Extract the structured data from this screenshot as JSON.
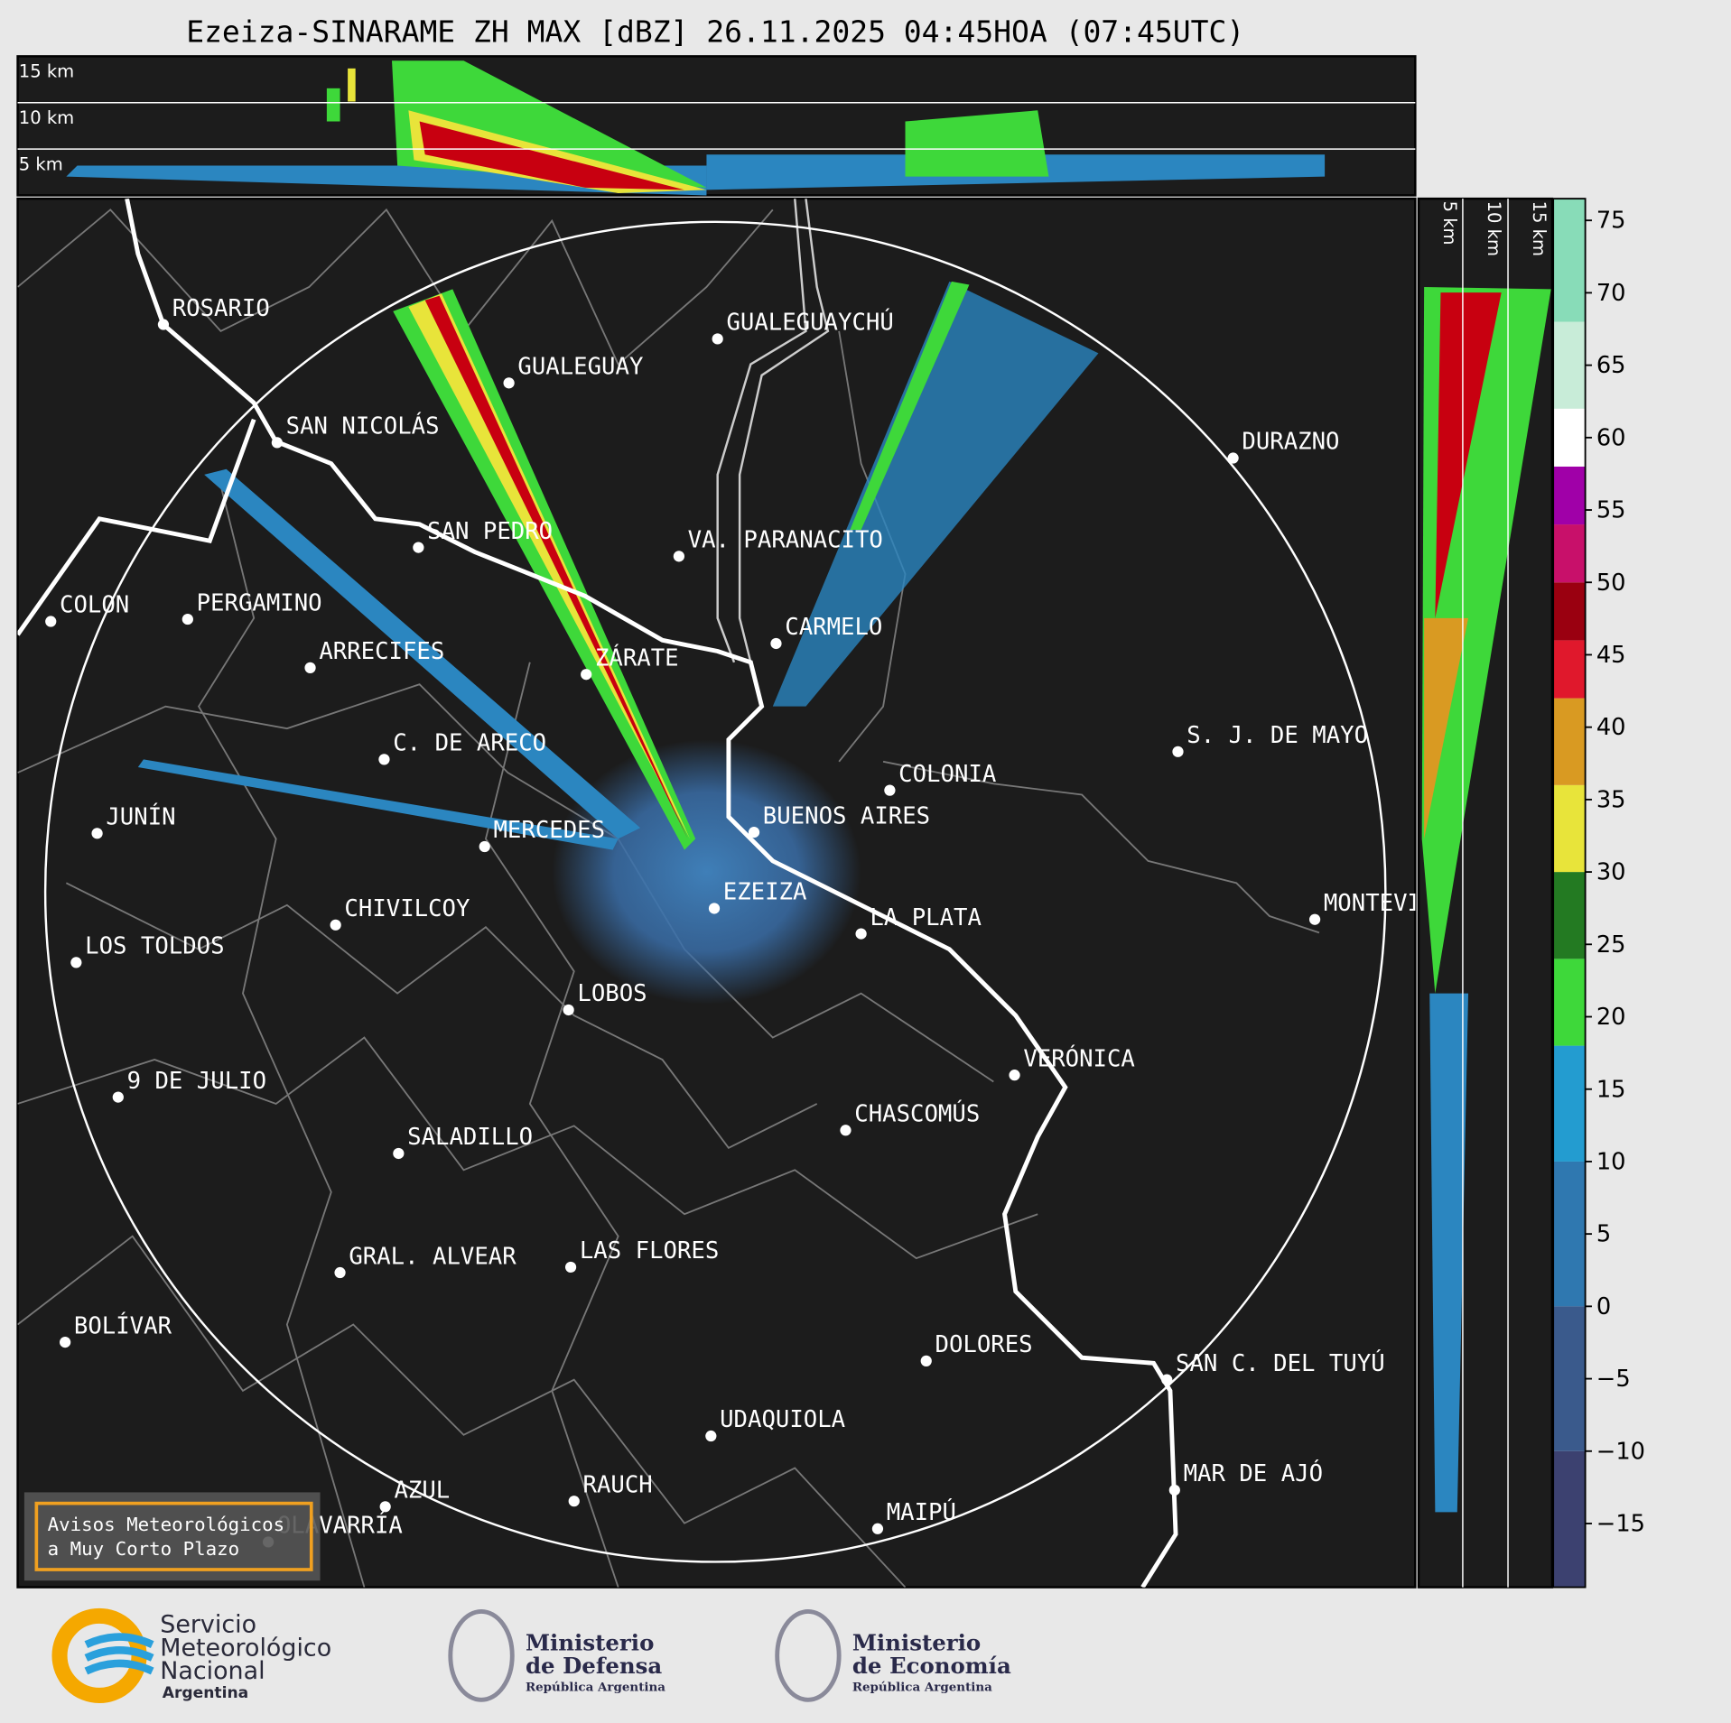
{
  "title": "Ezeiza-SINARAME ZH MAX [dBZ] 26.11.2025 04:45HOA (07:45UTC)",
  "top_panel": {
    "labels": [
      "15 km",
      "10 km",
      "5 km"
    ]
  },
  "side_panel": {
    "labels": [
      "5 km",
      "10 km",
      "15 km"
    ]
  },
  "cities": [
    "ROSARIO",
    "GUALEGUAYCHÚ",
    "GUALEGUAY",
    "SAN NICOLÁS",
    "DURAZNO",
    "SAN PEDRO",
    "VA. PARANACITO",
    "COLON",
    "PERGAMINO",
    "CARMELO",
    "ARRECIFES",
    "ZÁRATE",
    "S. J. DE MAYO",
    "C. DE ARECO",
    "COLONIA",
    "BUENOS AIRES",
    "JUNÍN",
    "MERCEDES",
    "MONTEVIDEO",
    "EZEIZA",
    "CHIVILCOY",
    "LA PLATA",
    "LOS TOLDOS",
    "LOBOS",
    "VERÓNICA",
    "9 DE JULIO",
    "CHASCOMÚS",
    "SALADILLO",
    "GRAL. ALVEAR",
    "LAS FLORES",
    "BOLÍVAR",
    "DOLORES",
    "SAN C. DEL TUYÚ",
    "UDAQUIOLA",
    "MAR DE AJÓ",
    "RAUCH",
    "AZUL",
    "OLAVARRÍA",
    "MAIPÚ"
  ],
  "colorbar": {
    "lim": [
      -19.4,
      76.5
    ],
    "ticks": [
      75,
      70,
      65,
      60,
      55,
      50,
      45,
      40,
      35,
      30,
      25,
      20,
      15,
      10,
      5,
      0,
      {
        "value": -5,
        "label": "−5"
      },
      {
        "value": -10,
        "label": "−10"
      },
      {
        "value": -15,
        "label": "−15"
      }
    ],
    "bands": [
      {
        "from": -19.4,
        "to": -10,
        "color": "#3c4170"
      },
      {
        "from": -10,
        "to": 0,
        "color": "#3a5a8c"
      },
      {
        "from": 0,
        "to": 10,
        "color": "#2f78b0"
      },
      {
        "from": 10,
        "to": 18,
        "color": "#239cd0"
      },
      {
        "from": 18,
        "to": 24,
        "color": "#3ed83a"
      },
      {
        "from": 24,
        "to": 30,
        "color": "#237a22"
      },
      {
        "from": 30,
        "to": 36,
        "color": "#e8e43a"
      },
      {
        "from": 36,
        "to": 42,
        "color": "#d99a22"
      },
      {
        "from": 42,
        "to": 46,
        "color": "#e0182c"
      },
      {
        "from": 46,
        "to": 50,
        "color": "#9a0010"
      },
      {
        "from": 50,
        "to": 54,
        "color": "#c8106a"
      },
      {
        "from": 54,
        "to": 58,
        "color": "#a000a8"
      },
      {
        "from": 58,
        "to": 62,
        "color": "#ffffff"
      },
      {
        "from": 62,
        "to": 68,
        "color": "#c8ecd8"
      },
      {
        "from": 68,
        "to": 76.5,
        "color": "#88dcb8"
      }
    ]
  },
  "warning": [
    "Avisos Meteorológicos",
    "a Muy Corto Plazo"
  ],
  "logos": {
    "smn": [
      "Servicio",
      "Meteorológico",
      "Nacional",
      "Argentina"
    ],
    "defensa": [
      "Ministerio",
      "de Defensa",
      "República Argentina"
    ],
    "economia": [
      "Ministerio",
      "de Economía",
      "República Argentina"
    ]
  }
}
